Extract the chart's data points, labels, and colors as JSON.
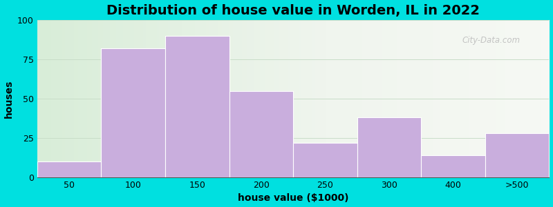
{
  "title": "Distribution of house value in Worden, IL in 2022",
  "xlabel": "house value ($1000)",
  "ylabel": "houses",
  "bar_labels": [
    "50",
    "100",
    "150",
    "200",
    "250",
    "300",
    "400",
    ">500"
  ],
  "bar_values": [
    10,
    82,
    90,
    55,
    22,
    38,
    14,
    28
  ],
  "bar_color": "#c9aedd",
  "ylim": [
    0,
    100
  ],
  "yticks": [
    0,
    25,
    50,
    75,
    100
  ],
  "bg_outer": "#00e0e0",
  "title_fontsize": 14,
  "axis_label_fontsize": 10,
  "tick_fontsize": 9,
  "watermark": "City-Data.com"
}
